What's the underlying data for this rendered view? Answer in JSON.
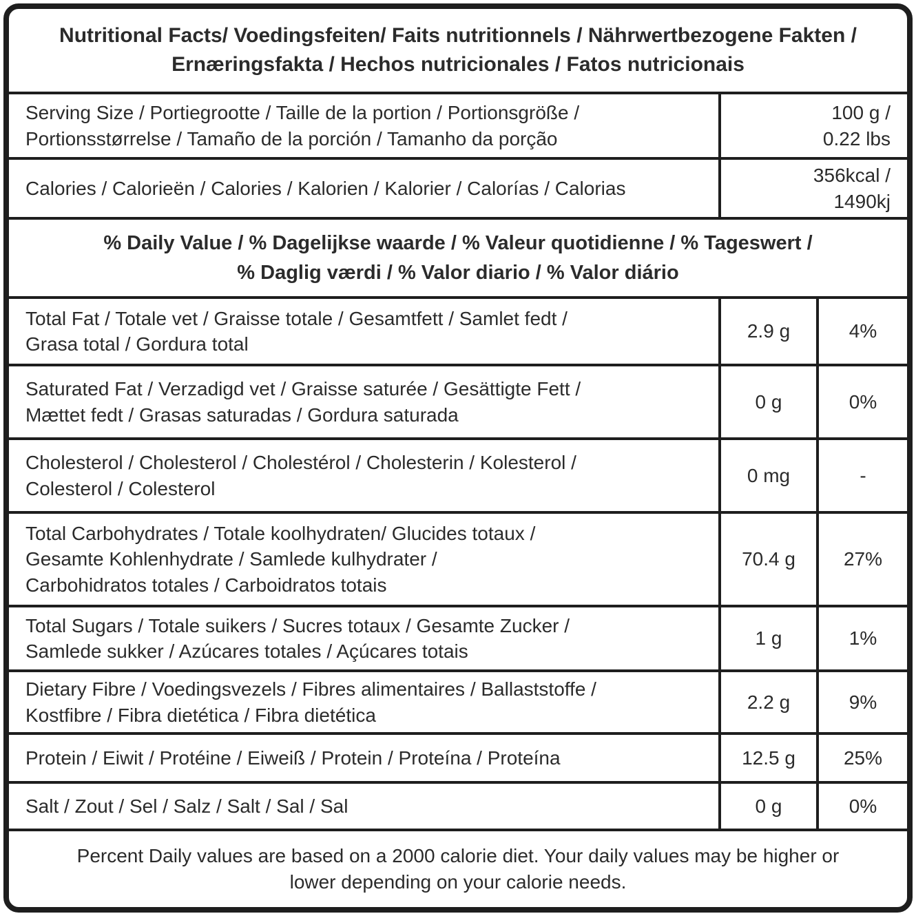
{
  "colors": {
    "border": "#1e1e1e",
    "text": "#2b2b2b",
    "background": "#ffffff"
  },
  "title": "Nutritional Facts/ Voedingsfeiten/ Faits nutritionnels / Nährwertbezogene Fakten /\nErnæringsfakta / Hechos nutricionales / Fatos nutricionais",
  "serving_row": {
    "label": "Serving Size / Portiegrootte / Taille de la portion / Portionsgröße /\nPortionsstørrelse / Tamaño de la porción / Tamanho da porção",
    "value": "100 g /\n0.22 lbs"
  },
  "calories_row": {
    "label": "Calories / Calorieën / Calories / Kalorien / Kalorier / Calorías / Calorias",
    "value": "356kcal /\n1490kj"
  },
  "daily_value_header": "% Daily Value / % Dagelijkse waarde / % Valeur quotidienne / % Tageswert /\n% Daglig værdi / % Valor diario / % Valor diário",
  "nutrients": [
    {
      "label": "Total Fat / Totale vet / Graisse totale / Gesamtfett / Samlet fedt /\nGrasa total / Gordura total",
      "amount": "2.9 g",
      "daily_value": "4%"
    },
    {
      "label": "Saturated Fat / Verzadigd vet / Graisse saturée / Gesättigte Fett /\nMættet fedt / Grasas saturadas / Gordura saturada",
      "amount": "0 g",
      "daily_value": "0%"
    },
    {
      "label": "Cholesterol / Cholesterol  / Cholestérol / Cholesterin /  Kolesterol /\nColesterol / Colesterol",
      "amount": "0 mg",
      "daily_value": "-"
    },
    {
      "label": "Total Carbohydrates / Totale koolhydraten/ Glucides totaux /\nGesamte Kohlenhydrate / Samlede kulhydrater /\nCarbohidratos totales / Carboidratos totais",
      "amount": "70.4 g",
      "daily_value": "27%"
    },
    {
      "label": "Total Sugars / Totale suikers / Sucres totaux / Gesamte Zucker /\nSamlede sukker / Azúcares totales / Açúcares totais",
      "amount": "1 g",
      "daily_value": "1%"
    },
    {
      "label": "Dietary Fibre / Voedingsvezels / Fibres alimentaires / Ballaststoffe /\nKostfibre / Fibra dietética / Fibra dietética",
      "amount": "2.2 g",
      "daily_value": "9%"
    },
    {
      "label": "Protein / Eiwit / Protéine / Eiweiß / Protein / Proteína / Proteína",
      "amount": "12.5 g",
      "daily_value": "25%"
    },
    {
      "label": "Salt / Zout / Sel / Salz / Salt / Sal / Sal",
      "amount": "0 g",
      "daily_value": "0%"
    }
  ],
  "footnote": "Percent Daily values are based on a 2000 calorie diet. Your daily values may be higher or\nlower depending on your calorie needs."
}
